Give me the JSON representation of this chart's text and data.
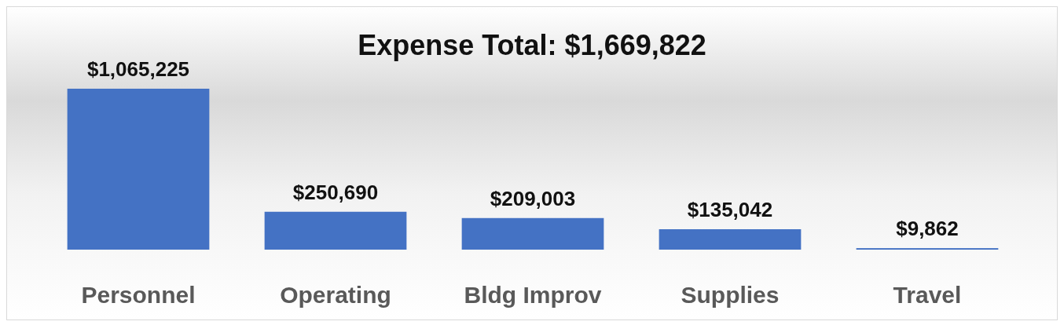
{
  "chart_data": {
    "type": "bar",
    "title": "Expense Total: $1,669,822",
    "categories": [
      "Personnel",
      "Operating",
      "Bldg Improv",
      "Supplies",
      "Travel"
    ],
    "values": [
      1065225,
      250690,
      209003,
      135042,
      9862
    ],
    "value_labels": [
      "$1,065,225",
      "$250,690",
      "$209,003",
      "$135,042",
      "$9,862"
    ],
    "color": "#4472c4"
  }
}
